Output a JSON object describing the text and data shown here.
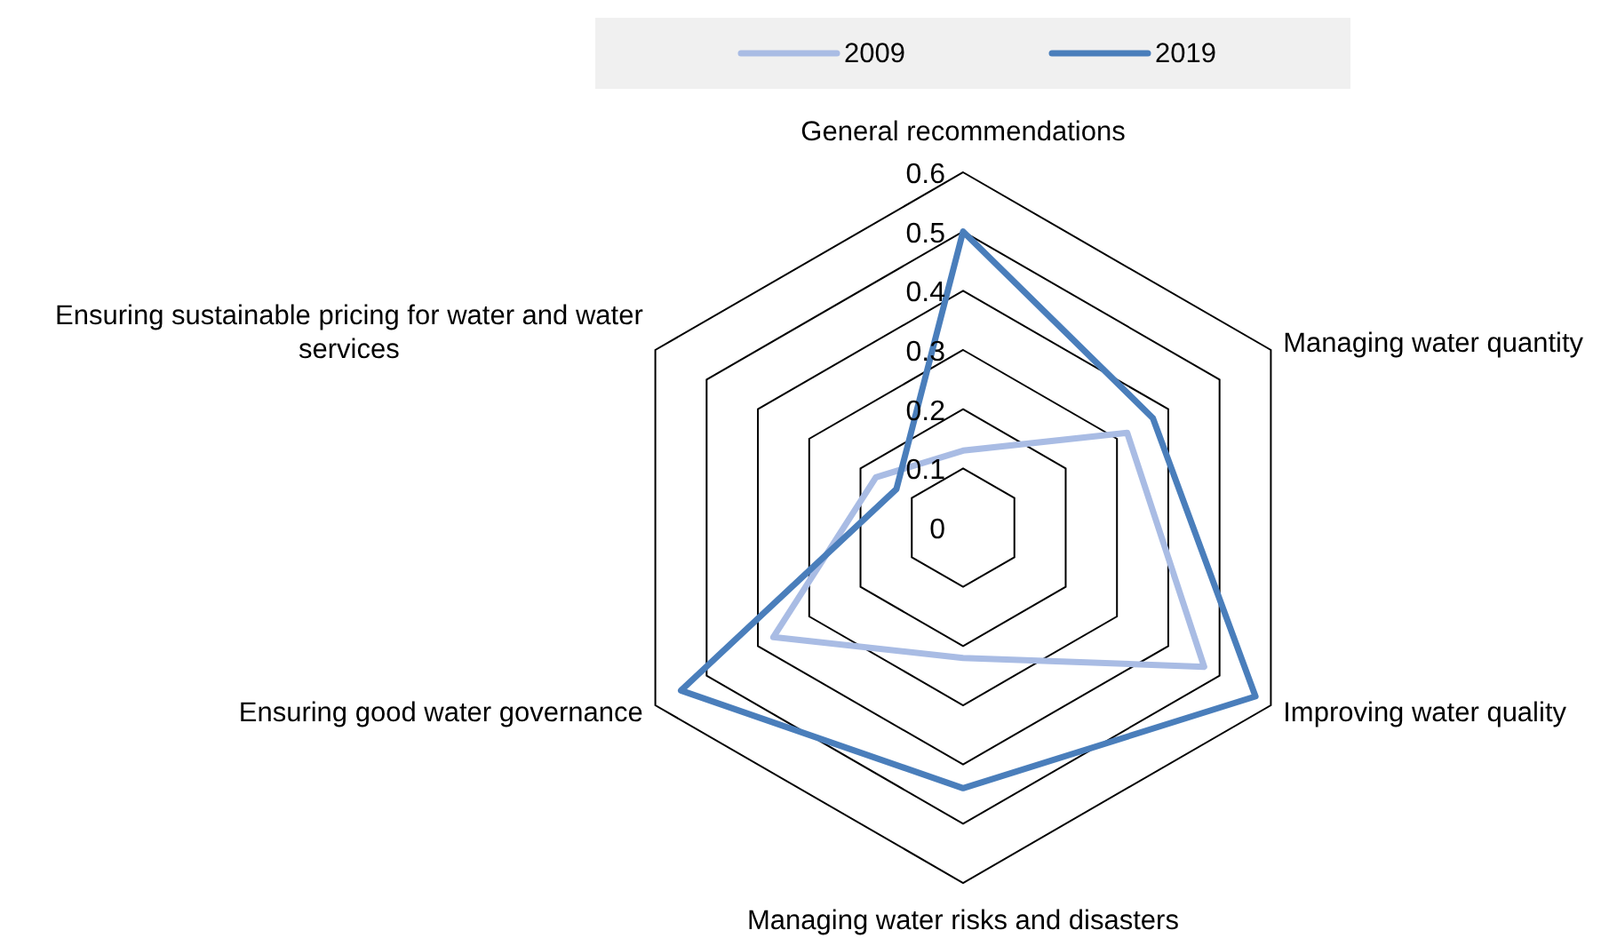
{
  "chart_data": {
    "type": "radar",
    "categories": [
      "General recommendations",
      "Managing water quantity",
      "Improving water quality",
      "Managing water risks and disasters",
      "Ensuring good water governance",
      "Ensuring sustainable pricing for water and water services"
    ],
    "series": [
      {
        "name": "2009",
        "color": "#a9bce4",
        "values": [
          0.13,
          0.32,
          0.47,
          0.22,
          0.37,
          0.17
        ]
      },
      {
        "name": "2019",
        "color": "#4a7ebb",
        "values": [
          0.5,
          0.37,
          0.57,
          0.44,
          0.55,
          0.13
        ]
      }
    ],
    "ylim": [
      0,
      0.6
    ],
    "yticks": [
      0,
      0.1,
      0.2,
      0.3,
      0.4,
      0.5,
      0.6
    ],
    "grid": true,
    "legend": "top"
  }
}
